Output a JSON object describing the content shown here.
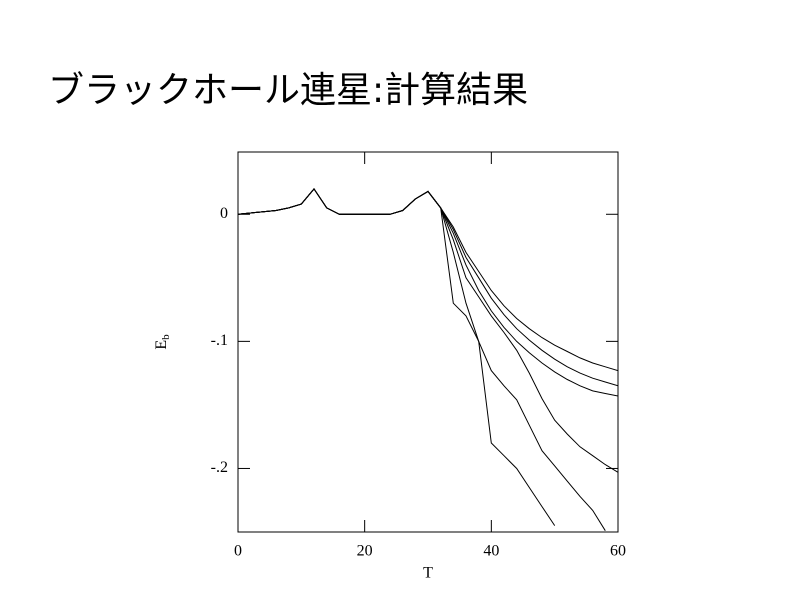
{
  "chart_data": {
    "type": "line",
    "title": "ブラックホール連星:計算結果",
    "xlabel": "T",
    "ylabel": "E",
    "ylabel_subscript": "b",
    "xlim": [
      0,
      60
    ],
    "ylim": [
      -0.25,
      0.049
    ],
    "xticks": [
      0,
      20,
      40,
      60
    ],
    "yticks": [
      {
        "value": 0,
        "label": "0"
      },
      {
        "value": -0.1,
        "label": "-.1"
      },
      {
        "value": -0.2,
        "label": "-.2"
      }
    ],
    "x": [
      0,
      2,
      4,
      6,
      8,
      10,
      12,
      14,
      16,
      18,
      20,
      22,
      24,
      26,
      28,
      30,
      32,
      34,
      36,
      38,
      40,
      42,
      44,
      46,
      48,
      50,
      52,
      54,
      56,
      58,
      60
    ],
    "series": [
      {
        "color": "#000000",
        "values": [
          0,
          0.001,
          0.002,
          0.003,
          0.005,
          0.008,
          0.02,
          0.005,
          0,
          0,
          0,
          0,
          0,
          0.003,
          0.012,
          0.018,
          0.005,
          -0.01,
          -0.03,
          -0.045,
          -0.06,
          -0.072,
          -0.082,
          -0.09,
          -0.097,
          -0.103,
          -0.108,
          -0.113,
          -0.117,
          -0.12,
          -0.123
        ]
      },
      {
        "color": "#000000",
        "values": [
          0,
          0.001,
          0.002,
          0.003,
          0.005,
          0.008,
          0.02,
          0.005,
          0,
          0,
          0,
          0,
          0,
          0.003,
          0.012,
          0.018,
          0.005,
          -0.012,
          -0.034,
          -0.05,
          -0.066,
          -0.079,
          -0.09,
          -0.099,
          -0.107,
          -0.114,
          -0.12,
          -0.125,
          -0.129,
          -0.132,
          -0.135
        ]
      },
      {
        "color": "#000000",
        "values": [
          0,
          0.001,
          0.002,
          0.003,
          0.005,
          0.008,
          0.02,
          0.005,
          0,
          0,
          0,
          0,
          0,
          0.003,
          0.012,
          0.018,
          0.005,
          -0.015,
          -0.04,
          -0.06,
          -0.076,
          -0.089,
          -0.1,
          -0.109,
          -0.117,
          -0.124,
          -0.13,
          -0.135,
          -0.139,
          -0.141,
          -0.143
        ]
      },
      {
        "color": "#000000",
        "values": [
          0,
          0.001,
          0.002,
          0.003,
          0.005,
          0.008,
          0.02,
          0.005,
          0,
          0,
          0,
          0,
          0,
          0.003,
          0.012,
          0.018,
          0.005,
          -0.02,
          -0.05,
          -0.065,
          -0.08,
          -0.093,
          -0.107,
          -0.125,
          -0.145,
          -0.162,
          -0.173,
          -0.183,
          -0.19,
          -0.197,
          -0.203
        ]
      },
      {
        "color": "#000000",
        "values": [
          0,
          0.001,
          0.002,
          0.003,
          0.005,
          0.008,
          0.02,
          0.005,
          0,
          0,
          0,
          0,
          0,
          0.003,
          0.012,
          0.018,
          0.005,
          -0.03,
          -0.07,
          -0.1,
          -0.123,
          -0.135,
          -0.146,
          -0.166,
          -0.186,
          -0.198,
          -0.21,
          -0.222,
          -0.233,
          -0.249,
          null
        ]
      },
      {
        "color": "#000000",
        "values": [
          0,
          0.001,
          0.002,
          0.003,
          0.005,
          0.008,
          0.02,
          0.005,
          0,
          0,
          0,
          0,
          0,
          0.003,
          0.012,
          0.018,
          0.005,
          -0.07,
          -0.08,
          -0.1,
          -0.18,
          -0.19,
          -0.2,
          -0.215,
          -0.23,
          -0.245,
          null,
          null,
          null,
          null,
          null
        ]
      }
    ]
  }
}
